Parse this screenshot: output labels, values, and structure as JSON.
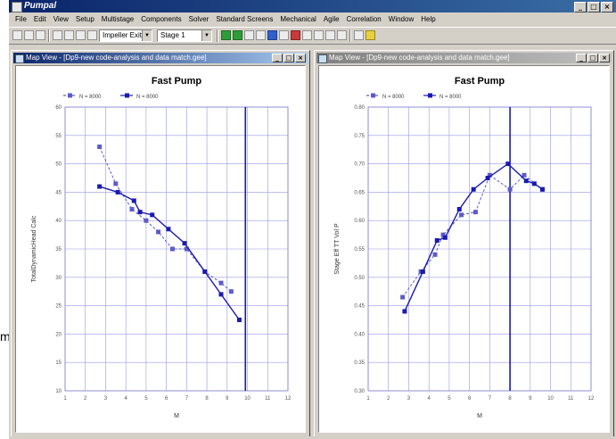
{
  "app": {
    "title": "Pumpal",
    "window_buttons": [
      "_",
      "□",
      "×"
    ]
  },
  "menu": [
    "File",
    "Edit",
    "View",
    "Setup",
    "Multistage",
    "Components",
    "Solver",
    "Standard Screens",
    "Mechanical",
    "Agile",
    "Correlation",
    "Window",
    "Help"
  ],
  "toolbar": {
    "combo_impeller": "Impeller Exit",
    "combo_stage": "Stage 1",
    "icon_names": [
      "new-icon",
      "open-icon",
      "save-icon",
      "print-icon",
      "cut-icon",
      "copy-icon",
      "paste-icon",
      "run-icon",
      "step-icon",
      "info-icon",
      "chart-icon",
      "grid-icon",
      "table-icon",
      "map-icon",
      "compare-icon",
      "zoom-icon",
      "undo-icon",
      "redo-icon",
      "settings-icon",
      "help-icon"
    ]
  },
  "left_window": {
    "title": "Map View - [Dp9-new code-analysis and data match.gee]"
  },
  "right_window": {
    "title": "Map View - [Dp9-new code-analysis and data match.gee]"
  },
  "side_label": "m",
  "chart_data": [
    {
      "type": "line",
      "title": "Fast Pump",
      "xlabel": "M",
      "ylabel": "TotalDynamicHead Calc",
      "xlim": [
        1,
        12
      ],
      "ylim": [
        10,
        60
      ],
      "xticks": [
        1,
        2,
        3,
        4,
        5,
        6,
        7,
        8,
        9,
        10,
        11,
        12
      ],
      "yticks": [
        10,
        15,
        20,
        25,
        30,
        35,
        40,
        45,
        50,
        55,
        60
      ],
      "grid": true,
      "legend": "top-left",
      "marker_line_x": 9.9,
      "series": [
        {
          "name": "N = 8000",
          "style": "dashed",
          "color": "#5c5cc8",
          "x": [
            2.7,
            3.5,
            4.3,
            5.0,
            5.6,
            6.3,
            7.0,
            7.9,
            8.7,
            9.2
          ],
          "y": [
            53.0,
            46.5,
            42.0,
            40.0,
            38.0,
            35.0,
            35.0,
            31.0,
            29.0,
            27.5
          ]
        },
        {
          "name": "N = 8000",
          "style": "solid",
          "color": "#1a1ab0",
          "x": [
            2.7,
            3.6,
            4.4,
            4.7,
            5.3,
            6.1,
            6.9,
            7.9,
            8.7,
            9.6
          ],
          "y": [
            46.0,
            45.0,
            43.5,
            41.5,
            41.0,
            38.5,
            36.0,
            31.0,
            27.0,
            22.5
          ]
        }
      ]
    },
    {
      "type": "line",
      "title": "Fast Pump",
      "xlabel": "M",
      "ylabel": "Stage Eff TT Vol P",
      "xlim": [
        1,
        12
      ],
      "ylim": [
        0.3,
        0.8
      ],
      "xticks": [
        1,
        2,
        3,
        4,
        5,
        6,
        7,
        8,
        9,
        10,
        11,
        12
      ],
      "yticks": [
        0.3,
        0.35,
        0.4,
        0.45,
        0.5,
        0.55,
        0.6,
        0.65,
        0.7,
        0.75,
        0.8
      ],
      "grid": true,
      "legend": "top-left",
      "marker_line_x": 8.0,
      "series": [
        {
          "name": "N = 8000",
          "style": "dashed",
          "color": "#5c5cc8",
          "x": [
            2.7,
            3.6,
            4.3,
            4.7,
            5.6,
            6.3,
            7.0,
            8.0,
            8.7,
            9.6
          ],
          "y": [
            0.465,
            0.51,
            0.54,
            0.575,
            0.61,
            0.615,
            0.68,
            0.655,
            0.68,
            0.655
          ]
        },
        {
          "name": "N = 8000",
          "style": "solid",
          "color": "#1a1ab0",
          "x": [
            2.8,
            3.7,
            4.4,
            4.8,
            5.5,
            6.2,
            6.9,
            7.9,
            8.8,
            9.2,
            9.6
          ],
          "y": [
            0.44,
            0.51,
            0.565,
            0.57,
            0.62,
            0.655,
            0.675,
            0.7,
            0.67,
            0.665,
            0.655
          ]
        }
      ]
    }
  ]
}
